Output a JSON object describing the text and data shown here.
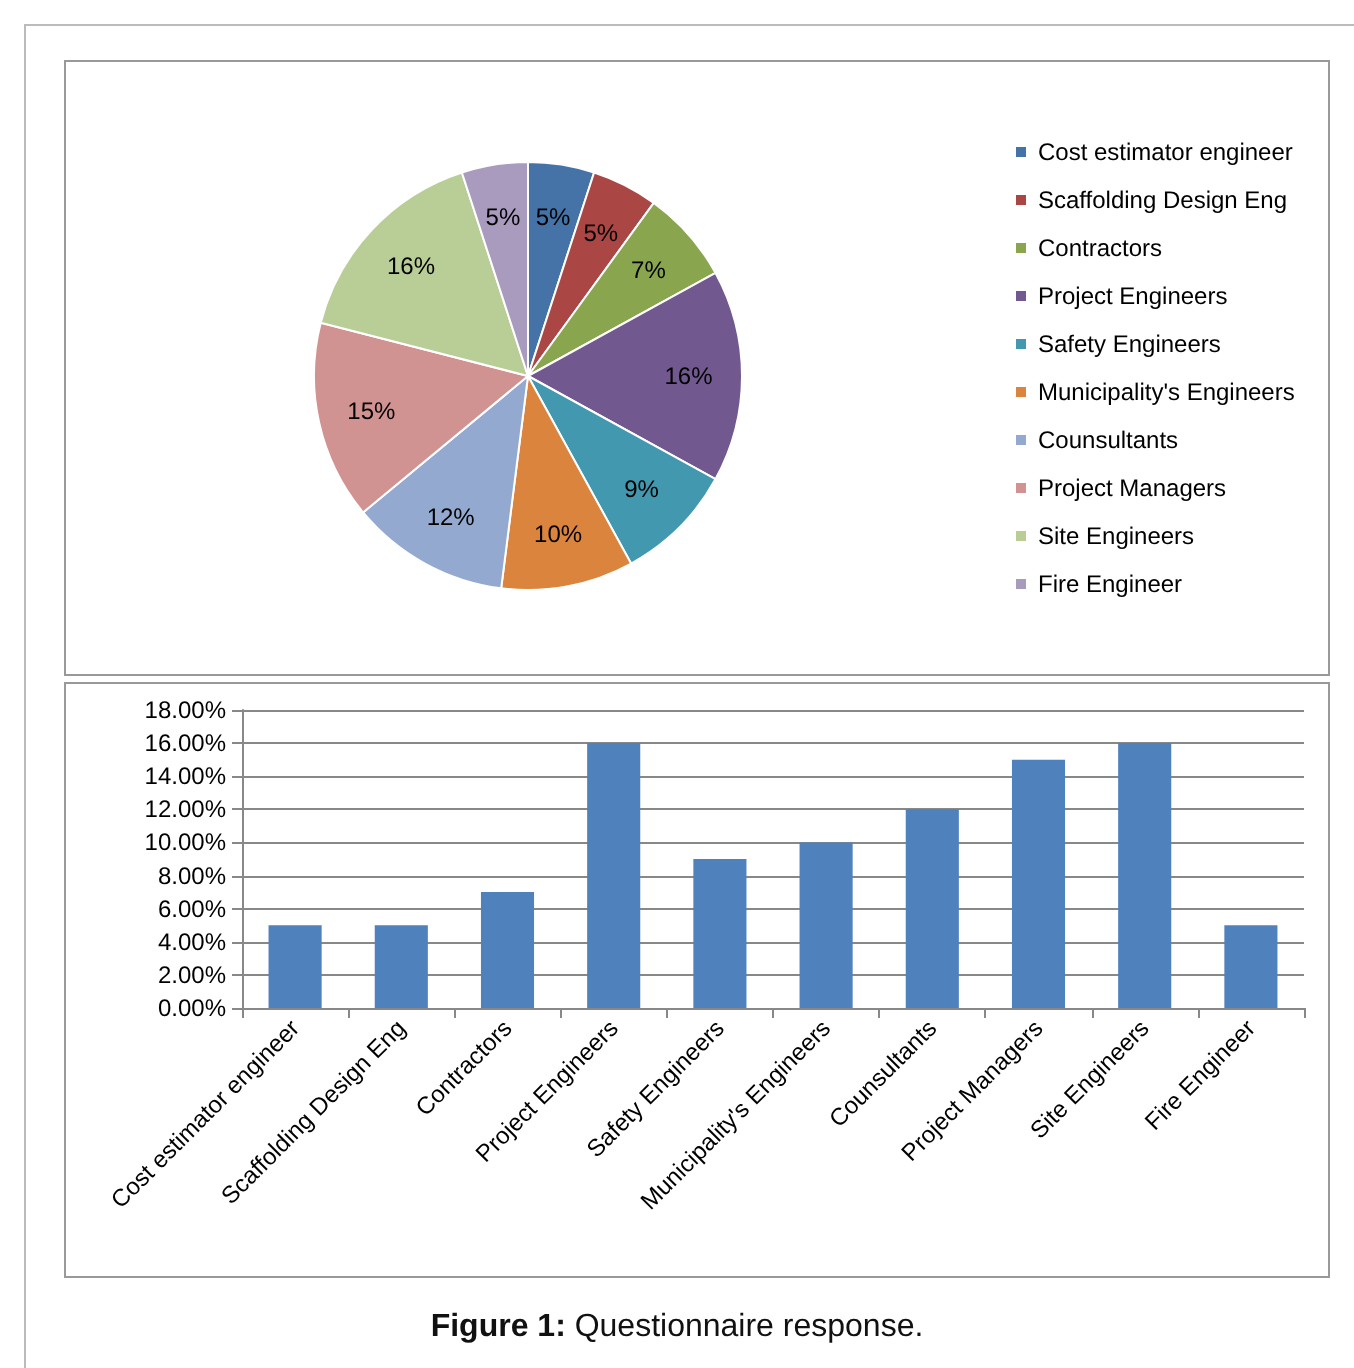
{
  "chart_data": [
    {
      "type": "pie",
      "categories": [
        "Cost estimator engineer",
        "Scaffolding Design Eng",
        "Contractors",
        "Project Engineers",
        "Safety Engineers",
        "Municipality's Engineers",
        "Counsultants",
        "Project Managers",
        "Site Engineers",
        "Fire Engineer"
      ],
      "values": [
        5,
        5,
        7,
        16,
        9,
        10,
        12,
        15,
        16,
        5
      ],
      "value_labels": [
        "5%",
        "5%",
        "7%",
        "16%",
        "9%",
        "10%",
        "12%",
        "15%",
        "16%",
        "5%"
      ],
      "colors": [
        "#4572a7",
        "#aa4643",
        "#89a54e",
        "#71588f",
        "#4198af",
        "#db843d",
        "#93a9cf",
        "#d19392",
        "#b9cd96",
        "#a99bbd"
      ],
      "legend": "right"
    },
    {
      "type": "bar",
      "categories": [
        "Cost estimator engineer",
        "Scaffolding Design Eng",
        "Contractors",
        "Project Engineers",
        "Safety Engineers",
        "Municipality's Engineers",
        "Counsultants",
        "Project Managers",
        "Site Engineers",
        "Fire Engineer"
      ],
      "values": [
        5,
        5,
        7,
        16,
        9,
        10,
        12,
        15,
        16,
        5
      ],
      "color": "#4f81bd",
      "ylim": [
        0,
        18
      ],
      "yticks": [
        {
          "value": 0,
          "label": "0.00%"
        },
        {
          "value": 2,
          "label": "2.00%"
        },
        {
          "value": 4,
          "label": "4.00%"
        },
        {
          "value": 6,
          "label": "6.00%"
        },
        {
          "value": 8,
          "label": "8.00%"
        },
        {
          "value": 10,
          "label": "10.00%"
        },
        {
          "value": 12,
          "label": "12.00%"
        },
        {
          "value": 14,
          "label": "14.00%"
        },
        {
          "value": 16,
          "label": "16.00%"
        },
        {
          "value": 18,
          "label": "18.00%"
        }
      ],
      "grid": "y",
      "legend": false,
      "annotations": [
        "Figure 1: Questionnaire response."
      ]
    }
  ]
}
